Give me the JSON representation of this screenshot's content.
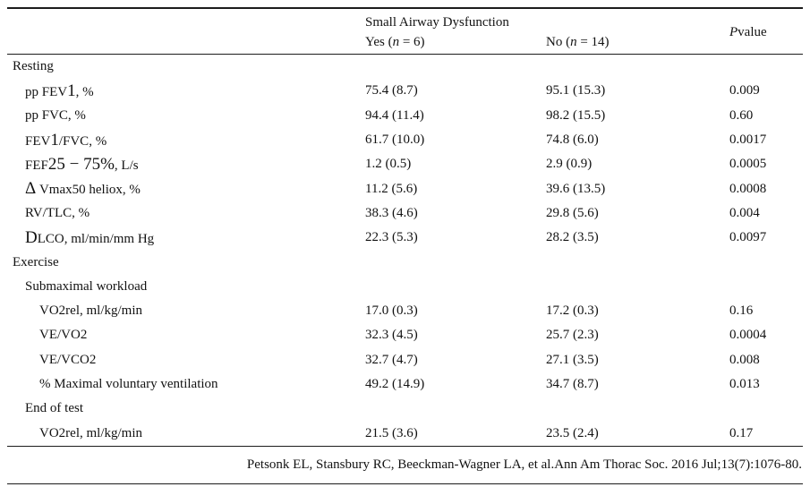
{
  "table": {
    "header": {
      "group": "Small Airway Dysfunction",
      "yes": [
        [
          "Yes (",
          "n"
        ],
        [
          "n",
          "it"
        ],
        [
          " = 6)",
          "n"
        ]
      ],
      "no": [
        [
          "No (",
          "n"
        ],
        [
          "n",
          "it"
        ],
        [
          " = 14)",
          "n"
        ]
      ],
      "p": [
        [
          "P",
          "it"
        ],
        [
          "value",
          "n"
        ]
      ]
    },
    "rows": [
      {
        "indent": 0,
        "section": true,
        "label": [
          [
            "Resting",
            "n"
          ]
        ],
        "yes": "",
        "no": "",
        "p": ""
      },
      {
        "indent": 1,
        "section": false,
        "label": [
          [
            "pp FEV",
            "n"
          ],
          [
            "1",
            "lg"
          ],
          [
            ", %",
            "n"
          ]
        ],
        "yes": "75.4 (8.7)",
        "no": "95.1 (15.3)",
        "p": "0.009"
      },
      {
        "indent": 1,
        "section": false,
        "label": [
          [
            "pp FVC, %",
            "n"
          ]
        ],
        "yes": "94.4 (11.4)",
        "no": "98.2 (15.5)",
        "p": "0.60"
      },
      {
        "indent": 1,
        "section": false,
        "label": [
          [
            "FEV",
            "n"
          ],
          [
            "1",
            "lg"
          ],
          [
            "/FVC, %",
            "n"
          ]
        ],
        "yes": "61.7 (10.0)",
        "no": "74.8 (6.0)",
        "p": "0.0017"
      },
      {
        "indent": 1,
        "section": false,
        "label": [
          [
            "FEF",
            "n"
          ],
          [
            "25 − 75%",
            "lg"
          ],
          [
            ", L/s",
            "n"
          ]
        ],
        "yes": "1.2 (0.5)",
        "no": "2.9 (0.9)",
        "p": "0.0005"
      },
      {
        "indent": 1,
        "section": false,
        "label": [
          [
            "Δ",
            "lg"
          ],
          [
            " Vmax50 heliox, %",
            "n"
          ]
        ],
        "yes": "11.2 (5.6)",
        "no": "39.6 (13.5)",
        "p": "0.0008"
      },
      {
        "indent": 1,
        "section": false,
        "label": [
          [
            "RV/TLC, %",
            "n"
          ]
        ],
        "yes": "38.3 (4.6)",
        "no": "29.8 (5.6)",
        "p": "0.004"
      },
      {
        "indent": 1,
        "section": false,
        "label": [
          [
            "D",
            "lg"
          ],
          [
            "LCO, ml/min/mm Hg",
            "n"
          ]
        ],
        "yes": "22.3 (5.3)",
        "no": "28.2 (3.5)",
        "p": "0.0097"
      },
      {
        "indent": 0,
        "section": true,
        "label": [
          [
            "Exercise",
            "n"
          ]
        ],
        "yes": "",
        "no": "",
        "p": ""
      },
      {
        "indent": 1,
        "section": true,
        "label": [
          [
            "Submaximal workload",
            "n"
          ]
        ],
        "yes": "",
        "no": "",
        "p": ""
      },
      {
        "indent": 2,
        "section": false,
        "label": [
          [
            "VO2rel, ml/kg/min",
            "n"
          ]
        ],
        "yes": "17.0 (0.3)",
        "no": "17.2 (0.3)",
        "p": "0.16"
      },
      {
        "indent": 2,
        "section": false,
        "label": [
          [
            "VE/VO2",
            "n"
          ]
        ],
        "yes": "32.3 (4.5)",
        "no": "25.7 (2.3)",
        "p": "0.0004"
      },
      {
        "indent": 2,
        "section": false,
        "label": [
          [
            "VE/VCO2",
            "n"
          ]
        ],
        "yes": "32.7 (4.7)",
        "no": "27.1 (3.5)",
        "p": "0.008"
      },
      {
        "indent": 2,
        "section": false,
        "label": [
          [
            "% Maximal voluntary ventilation",
            "n"
          ]
        ],
        "yes": "49.2 (14.9)",
        "no": "34.7 (8.7)",
        "p": "0.013"
      },
      {
        "indent": 1,
        "section": true,
        "label": [
          [
            "End of test",
            "n"
          ]
        ],
        "yes": "",
        "no": "",
        "p": ""
      },
      {
        "indent": 2,
        "section": false,
        "label": [
          [
            "VO2rel, ml/kg/min",
            "n"
          ]
        ],
        "yes": "21.5 (3.6)",
        "no": "23.5 (2.4)",
        "p": "0.17"
      }
    ]
  },
  "citation": "Petsonk EL, Stansbury RC, Beeckman-Wagner LA, et al.Ann Am Thorac Soc. 2016 Jul;13(7):1076-80."
}
